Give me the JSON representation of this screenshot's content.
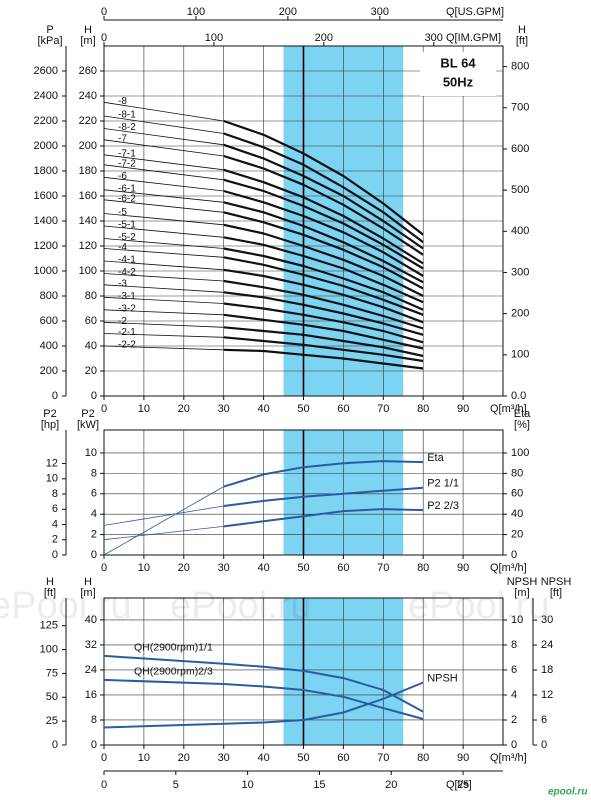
{
  "chart_data": [
    {
      "type": "line",
      "title": "BL 64",
      "subtitle": "50Hz",
      "x_label": "Q[m³/h]",
      "xlim": [
        0,
        100
      ],
      "xticks": [
        0,
        10,
        20,
        30,
        40,
        50,
        60,
        70,
        80,
        90
      ],
      "ylabel_lines": [
        "H",
        "[m]"
      ],
      "ylim": [
        0,
        280
      ],
      "yticks": [
        0,
        20,
        40,
        60,
        80,
        100,
        120,
        140,
        160,
        180,
        200,
        220,
        240,
        260
      ],
      "y2label_lines": [
        "H",
        "[ft]"
      ],
      "y2lim": [
        0,
        850
      ],
      "y2ticks": [
        {
          "value": 0,
          "label": "0.0"
        },
        100,
        200,
        300,
        400,
        500,
        600,
        700,
        800
      ],
      "extra_axes": [
        {
          "side": "left",
          "label_lines": [
            "P",
            "[kPa]"
          ],
          "lim": [
            0,
            2800
          ],
          "ticks": [
            0,
            200,
            400,
            600,
            800,
            1000,
            1200,
            1400,
            1600,
            1800,
            2000,
            2200,
            2400,
            2600
          ]
        },
        {
          "side": "top",
          "label": "Q[US.GPM]",
          "lim": [
            0,
            434
          ],
          "ticks": [
            0,
            100,
            200,
            300
          ]
        },
        {
          "side": "top",
          "label": "Q[IM.GPM]",
          "lim": [
            0,
            363
          ],
          "ticks": [
            0,
            100,
            200,
            300
          ]
        }
      ],
      "shaded_xrange": [
        45,
        75
      ],
      "shade_color": "#7dd3f2",
      "ref_x": 50,
      "grid": true,
      "color": "#111111",
      "thin_segments": 1,
      "label_at": "start",
      "x": [
        0,
        30,
        40,
        50,
        60,
        70,
        80
      ],
      "series": [
        {
          "name": "-8",
          "values": [
            235,
            220,
            209,
            194,
            176,
            154,
            129
          ]
        },
        {
          "name": "-8-1",
          "values": [
            224,
            210,
            199,
            185,
            167,
            147,
            123
          ]
        },
        {
          "name": "-8-2",
          "values": [
            214,
            201,
            190,
            176,
            160,
            140,
            118
          ]
        },
        {
          "name": "-7",
          "values": [
            205,
            192,
            182,
            169,
            153,
            134,
            113
          ]
        },
        {
          "name": "-7-1",
          "values": [
            193,
            181,
            171,
            159,
            144,
            126,
            106
          ]
        },
        {
          "name": "-7-2",
          "values": [
            185,
            173,
            164,
            152,
            138,
            121,
            102
          ]
        },
        {
          "name": "-6",
          "values": [
            175,
            164,
            155,
            144,
            131,
            115,
            96
          ]
        },
        {
          "name": "-6-1",
          "values": [
            165,
            155,
            147,
            136,
            123,
            108,
            91
          ]
        },
        {
          "name": "-6-2",
          "values": [
            157,
            147,
            139,
            129,
            117,
            103,
            86
          ]
        },
        {
          "name": "-5",
          "values": [
            146,
            137,
            130,
            120,
            109,
            96,
            80
          ]
        },
        {
          "name": "-5-1",
          "values": [
            136,
            127,
            121,
            112,
            102,
            89,
            75
          ]
        },
        {
          "name": "-5-2",
          "values": [
            126,
            118,
            112,
            104,
            94,
            83,
            69
          ]
        },
        {
          "name": "-4",
          "values": [
            118,
            111,
            105,
            97,
            88,
            77,
            65
          ]
        },
        {
          "name": "-4-1",
          "values": [
            108,
            101,
            96,
            89,
            81,
            71,
            59
          ]
        },
        {
          "name": "-4-2",
          "values": [
            98,
            92,
            87,
            81,
            73,
            64,
            54
          ]
        },
        {
          "name": "-3",
          "values": [
            89,
            83,
            79,
            73,
            66,
            58,
            49
          ]
        },
        {
          "name": "-3-1",
          "values": [
            79,
            74,
            70,
            65,
            59,
            52,
            43
          ]
        },
        {
          "name": "-3-2",
          "values": [
            69,
            65,
            61,
            57,
            52,
            45,
            38
          ]
        },
        {
          "name": "-2",
          "values": [
            59,
            55,
            52,
            49,
            44,
            39,
            32
          ]
        },
        {
          "name": "-2-1",
          "values": [
            50,
            47,
            44,
            41,
            37,
            33,
            28
          ]
        },
        {
          "name": "-2-2",
          "values": [
            40,
            37,
            36,
            33,
            30,
            26,
            22
          ]
        }
      ]
    },
    {
      "type": "line",
      "x_label": "Q[m³/h]",
      "xlim": [
        0,
        100
      ],
      "xticks": [
        0,
        10,
        20,
        30,
        40,
        50,
        60,
        70,
        80,
        90
      ],
      "ylabel_lines": [
        "P2",
        "[kW]"
      ],
      "ylim": [
        0,
        12.25
      ],
      "yticks": [
        0,
        2,
        4,
        6,
        8,
        10
      ],
      "y2label_lines": [
        "Eta",
        "[%]"
      ],
      "y2lim": [
        0,
        122.5
      ],
      "y2ticks": [
        0,
        20,
        40,
        60,
        80,
        100
      ],
      "extra_axes": [
        {
          "side": "left",
          "label_lines": [
            "P2",
            "[hp]"
          ],
          "lim": [
            0,
            16.4
          ],
          "ticks": [
            0,
            2,
            4,
            6,
            8,
            10,
            12
          ]
        }
      ],
      "shaded_xrange": [
        45,
        75
      ],
      "shade_color": "#7dd3f2",
      "ref_x": 50,
      "grid": true,
      "color": "#2a5d9f",
      "thin_segments": 1,
      "x": [
        0,
        30,
        40,
        50,
        60,
        70,
        80
      ],
      "series": [
        {
          "name": "Eta",
          "axis": "y2",
          "label_at": "end",
          "values": [
            0,
            67,
            79,
            86,
            90,
            92,
            91
          ]
        },
        {
          "name": "P2 1/1",
          "label_at": "end",
          "values": [
            2.9,
            4.8,
            5.3,
            5.7,
            6.0,
            6.3,
            6.6
          ]
        },
        {
          "name": "P2 2/3",
          "label_at": "end",
          "values": [
            1.5,
            2.8,
            3.3,
            3.8,
            4.3,
            4.5,
            4.4
          ]
        }
      ]
    },
    {
      "type": "line",
      "x_label": "Q[m³/h]",
      "xlim": [
        0,
        100
      ],
      "xticks": [
        0,
        10,
        20,
        30,
        40,
        50,
        60,
        70,
        80,
        90
      ],
      "ylabel_lines": [
        "H",
        "[m]"
      ],
      "ylim": [
        0,
        47
      ],
      "yticks": [
        0,
        8,
        16,
        24,
        32,
        40
      ],
      "y2label_lines": [
        "NPSH",
        "[m]"
      ],
      "y2lim": [
        0,
        11.76
      ],
      "y2ticks": [
        0,
        2,
        4,
        6,
        8,
        10
      ],
      "extra_axes": [
        {
          "side": "left",
          "label_lines": [
            "H",
            "[ft]"
          ],
          "lim": [
            0,
            154
          ],
          "ticks": [
            0,
            25,
            50,
            75,
            100,
            125
          ]
        },
        {
          "side": "right",
          "label_lines": [
            "NPSH",
            "[ft]"
          ],
          "lim": [
            0,
            35.3
          ],
          "ticks": [
            0,
            6,
            12,
            18,
            24,
            30
          ]
        },
        {
          "side": "bottom",
          "label": "Q[l/s]",
          "lim": [
            0,
            27.78
          ],
          "ticks": [
            0,
            5,
            10,
            15,
            20,
            25
          ]
        }
      ],
      "shaded_xrange": [
        45,
        75
      ],
      "shade_color": "#7dd3f2",
      "ref_x": 50,
      "grid": true,
      "color": "#2a5d9f",
      "thin_segments": 0,
      "x": [
        0,
        30,
        40,
        50,
        60,
        70,
        80
      ],
      "series": [
        {
          "name": "QH(2900rpm)1/1",
          "label_at": "above-start",
          "values": [
            28.5,
            26,
            25,
            23.7,
            21.4,
            17.6,
            10.6
          ]
        },
        {
          "name": "QH(2900rpm)2/3",
          "label_at": "above-start",
          "values": [
            20.8,
            19.5,
            18.7,
            17.6,
            15.4,
            11.8,
            8.3
          ]
        },
        {
          "name": "NPSH",
          "axis": "y2",
          "label_at": "end",
          "values": [
            1.4,
            1.7,
            1.8,
            2.0,
            2.6,
            3.7,
            5.0
          ]
        }
      ]
    }
  ],
  "watermark": "ePool.ru",
  "logo": "epool.ru"
}
